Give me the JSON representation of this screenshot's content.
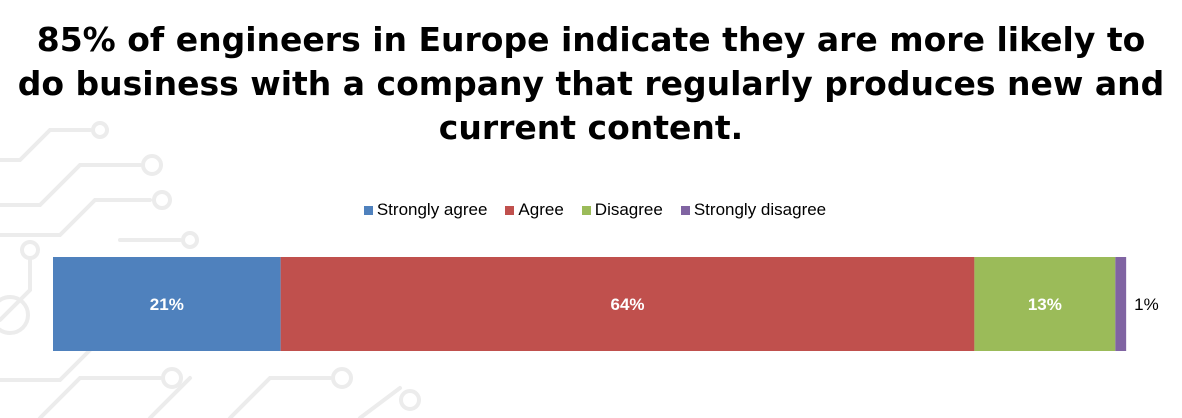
{
  "title_lines": [
    "85% of engineers in Europe indicate they are more likely to",
    "do business with a company that regularly produces new and",
    "current content."
  ],
  "legend": [
    {
      "label": "Strongly agree",
      "color": "#4f81bd"
    },
    {
      "label": "Agree",
      "color": "#c0504d"
    },
    {
      "label": "Disagree",
      "color": "#9bbb59"
    },
    {
      "label": "Strongly disagree",
      "color": "#8064a2"
    }
  ],
  "chart_data": {
    "type": "bar",
    "orientation": "horizontal",
    "stacked": true,
    "title": "85% of engineers in Europe indicate they are more likely to do business with a company that regularly produces new and current content.",
    "legend_position": "top-center",
    "grid": false,
    "xlim": [
      0,
      100
    ],
    "series": [
      {
        "name": "Strongly agree",
        "value": 21,
        "label": "21%",
        "color": "#4f81bd",
        "label_color": "#ffffff",
        "label_placement": "inside"
      },
      {
        "name": "Agree",
        "value": 64,
        "label": "64%",
        "color": "#c0504d",
        "label_color": "#ffffff",
        "label_placement": "inside"
      },
      {
        "name": "Disagree",
        "value": 13,
        "label": "13%",
        "color": "#9bbb59",
        "label_color": "#ffffff",
        "label_placement": "inside"
      },
      {
        "name": "Strongly disagree",
        "value": 1,
        "label": "1%",
        "color": "#8064a2",
        "label_color": "#000000",
        "label_placement": "outside"
      }
    ]
  }
}
